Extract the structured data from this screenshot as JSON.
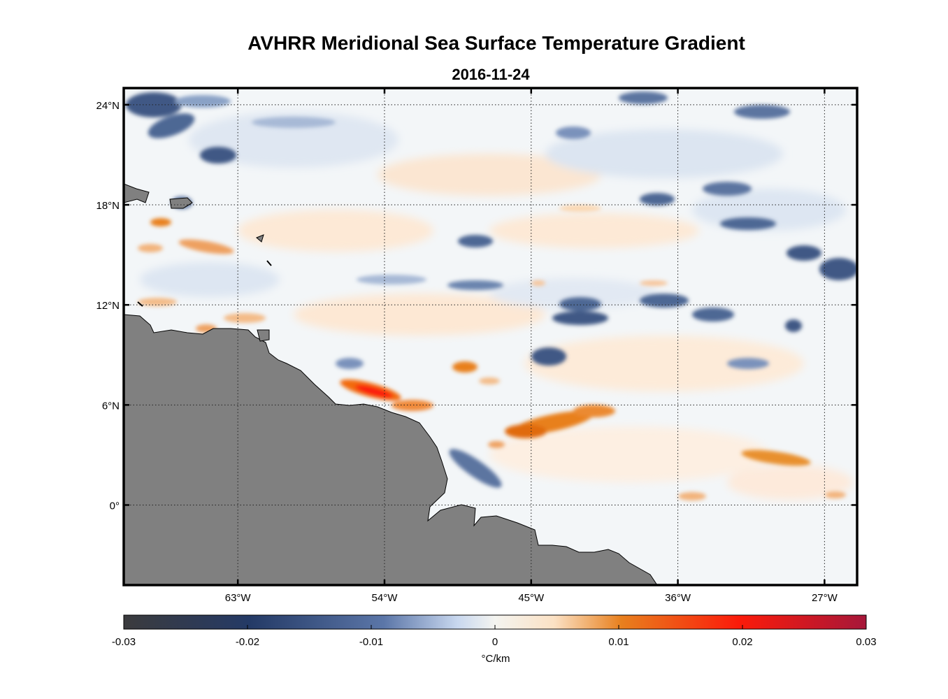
{
  "title": "AVHRR Meridional Sea Surface Temperature Gradient",
  "subtitle": "2016-11-24",
  "map": {
    "lon_ticks": [
      "63°W",
      "54°W",
      "45°W",
      "36°W",
      "27°W"
    ],
    "lat_ticks": [
      "24°N",
      "18°N",
      "12°N",
      "6°N",
      "0°"
    ],
    "lon_values": [
      -63,
      -54,
      -45,
      -36,
      -27
    ],
    "lat_values": [
      24,
      18,
      12,
      6,
      0
    ],
    "lon_range": [
      -70,
      -25
    ],
    "lat_range": [
      -4.8,
      25
    ],
    "land_color": "#808080",
    "gridlines": "dotted"
  },
  "colorbar": {
    "ticks": [
      "-0.03",
      "-0.02",
      "-0.01",
      "0",
      "0.01",
      "0.02",
      "0.03"
    ],
    "range": [
      -0.03,
      0.03
    ],
    "unit": "°C/km",
    "colors": [
      "#3b3b3d",
      "#243a66",
      "#5b76a8",
      "#c9d8ef",
      "#f4f4f0",
      "#fbe1c4",
      "#e8801e",
      "#fb1a0a",
      "#a6173a"
    ]
  }
}
